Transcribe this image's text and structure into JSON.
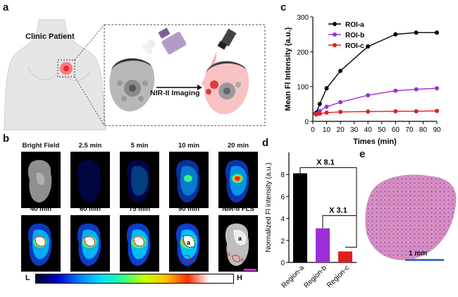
{
  "panel_letters": {
    "a": "a",
    "b": "b",
    "c": "c",
    "d": "d",
    "e": "e"
  },
  "panel_a": {
    "patient_label": "Clinic Patient",
    "imaging_label": "NIR-II Imaging"
  },
  "panel_b": {
    "tiles": [
      {
        "caption": "Bright Field",
        "level": 0
      },
      {
        "caption": "2.5 min",
        "level": 0.15
      },
      {
        "caption": "5 min",
        "level": 0.3
      },
      {
        "caption": "10 min",
        "level": 0.5
      },
      {
        "caption": "20 min",
        "level": 0.65
      },
      {
        "caption": "40 min",
        "level": 0.8
      },
      {
        "caption": "60 min",
        "level": 0.85
      },
      {
        "caption": "75 min",
        "level": 0.9
      },
      {
        "caption": "90 min",
        "level": 0.95
      },
      {
        "caption": "NIR-II FLS",
        "level": 0
      }
    ],
    "roi_labels": {
      "a": "a",
      "b": "b",
      "c": "c"
    },
    "colorbar_low": "L",
    "colorbar_high": "H",
    "colors": {
      "scale_bar": "#cc33cc"
    }
  },
  "chart_data": [
    {
      "type": "line",
      "xlabel": "Times (min)",
      "ylabel": "Mean Fl Intensity (a.u.)",
      "xlim": [
        0,
        90
      ],
      "ylim": [
        0,
        300
      ],
      "xticks": [
        0,
        10,
        20,
        30,
        40,
        50,
        60,
        70,
        80,
        90
      ],
      "yticks": [
        0,
        100,
        200,
        300
      ],
      "legend_position": "top-left",
      "series": [
        {
          "name": "ROI-a",
          "color": "#000000",
          "x": [
            2.5,
            5,
            10,
            20,
            40,
            60,
            75,
            90
          ],
          "y": [
            25,
            50,
            95,
            145,
            215,
            250,
            255,
            255
          ]
        },
        {
          "name": "ROI-b",
          "color": "#9b30d9",
          "x": [
            2.5,
            5,
            10,
            20,
            40,
            60,
            75,
            90
          ],
          "y": [
            22,
            30,
            42,
            55,
            75,
            88,
            92,
            95
          ]
        },
        {
          "name": "ROI-c",
          "color": "#e0201e",
          "x": [
            2.5,
            5,
            10,
            20,
            40,
            60,
            75,
            90
          ],
          "y": [
            20,
            22,
            25,
            27,
            28,
            29,
            29,
            30
          ]
        }
      ]
    },
    {
      "type": "bar",
      "ylabel": "Normalized Fl intensity (a.u.)",
      "categories": [
        "Region-a",
        "Region-b",
        "Region-c"
      ],
      "values": [
        8.1,
        3.1,
        1.0
      ],
      "colors": [
        "#000000",
        "#9b30d9",
        "#e0201e"
      ],
      "ylim": [
        0,
        10
      ],
      "yticks": [
        0,
        2,
        4,
        6,
        8
      ],
      "annotations": [
        "X 8.1",
        "X 3.1"
      ]
    }
  ],
  "panel_e": {
    "scale_label": "1 mm",
    "scale_color": "#3b6fc4"
  }
}
